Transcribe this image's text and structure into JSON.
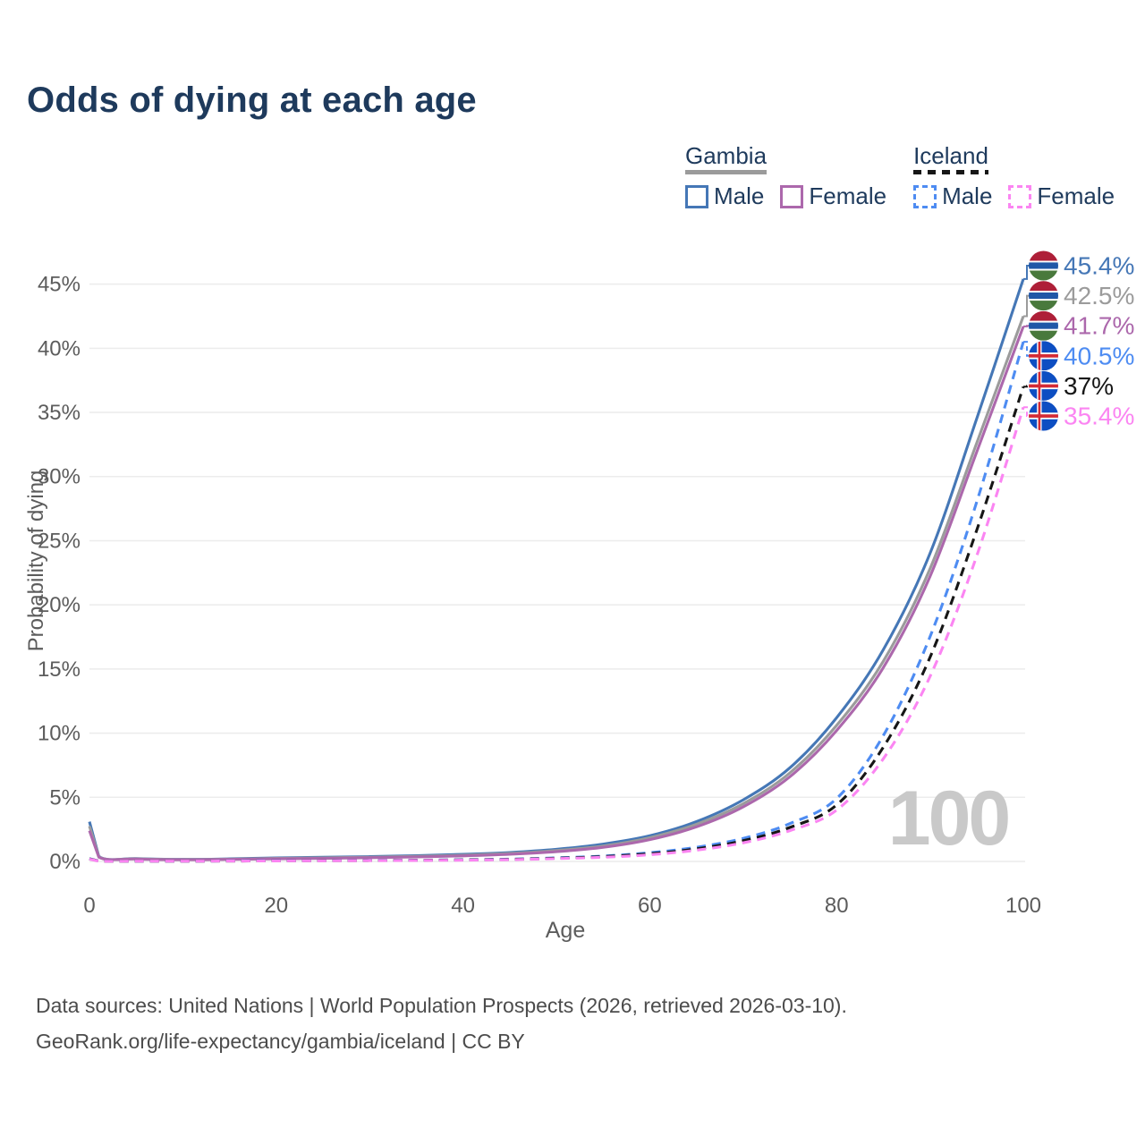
{
  "age_indicator": "100",
  "legend": {
    "groups": [
      {
        "name": "Gambia",
        "line_style": "solid",
        "line_color": "#9b9b9b",
        "items": [
          {
            "label": "Male",
            "color": "#4577b6",
            "dashed": false
          },
          {
            "label": "Female",
            "color": "#ac68ac",
            "dashed": false
          }
        ]
      },
      {
        "name": "Iceland",
        "line_style": "dashed",
        "line_color": "#161616",
        "items": [
          {
            "label": "Male",
            "color": "#4e8cf2",
            "dashed": true
          },
          {
            "label": "Female",
            "color": "#fb85f2",
            "dashed": true
          }
        ]
      }
    ]
  },
  "chart_data": {
    "type": "line",
    "title": "Odds of dying at each age",
    "xlabel": "Age",
    "ylabel": "Probability of dying",
    "xlim": [
      0,
      100
    ],
    "ylim": [
      0,
      46.5
    ],
    "x_ticks": [
      0,
      20,
      40,
      60,
      80,
      100
    ],
    "y_ticks": [
      0,
      5,
      10,
      15,
      20,
      25,
      30,
      35,
      40,
      45
    ],
    "y_tick_suffix": "%",
    "grid": true,
    "legend_position": "top-right",
    "x": [
      0,
      1,
      5,
      10,
      15,
      20,
      25,
      30,
      35,
      40,
      45,
      50,
      55,
      60,
      65,
      70,
      75,
      80,
      85,
      90,
      95,
      100
    ],
    "series": [
      {
        "name": "Gambia Male",
        "color": "#4577b6",
        "dash": "solid",
        "flag": "gambia",
        "end_label": "45.4%",
        "values": [
          3.1,
          0.4,
          0.22,
          0.16,
          0.2,
          0.28,
          0.33,
          0.38,
          0.45,
          0.55,
          0.7,
          0.95,
          1.35,
          2.0,
          3.1,
          4.8,
          7.3,
          11.2,
          16.5,
          24.0,
          34.5,
          45.4
        ]
      },
      {
        "name": "Gambia",
        "color": "#9b9b9b",
        "dash": "solid",
        "flag": "gambia",
        "end_label": "42.5%",
        "values": [
          2.75,
          0.37,
          0.2,
          0.15,
          0.18,
          0.24,
          0.28,
          0.33,
          0.4,
          0.48,
          0.62,
          0.85,
          1.2,
          1.85,
          2.9,
          4.5,
          6.9,
          10.6,
          15.6,
          22.8,
          32.6,
          42.5
        ]
      },
      {
        "name": "Gambia Female",
        "color": "#ac68ac",
        "dash": "solid",
        "flag": "gambia",
        "end_label": "41.7%",
        "values": [
          2.4,
          0.34,
          0.19,
          0.13,
          0.16,
          0.2,
          0.24,
          0.29,
          0.35,
          0.43,
          0.56,
          0.76,
          1.1,
          1.7,
          2.7,
          4.25,
          6.6,
          10.2,
          15.1,
          22.2,
          31.9,
          41.7
        ]
      },
      {
        "name": "Iceland Male",
        "color": "#4e8cf2",
        "dash": "dashed",
        "flag": "iceland",
        "end_label": "40.5%",
        "values": [
          0.22,
          0.03,
          0.02,
          0.02,
          0.04,
          0.06,
          0.07,
          0.08,
          0.1,
          0.13,
          0.18,
          0.28,
          0.42,
          0.68,
          1.1,
          1.8,
          2.95,
          4.9,
          9.8,
          17.5,
          28.0,
          40.5
        ]
      },
      {
        "name": "Iceland",
        "color": "#161616",
        "dash": "dashed",
        "flag": "iceland",
        "end_label": "37%",
        "values": [
          0.2,
          0.03,
          0.02,
          0.02,
          0.03,
          0.05,
          0.06,
          0.07,
          0.09,
          0.12,
          0.16,
          0.25,
          0.38,
          0.6,
          0.98,
          1.62,
          2.65,
          4.4,
          8.9,
          15.9,
          25.8,
          37.0
        ]
      },
      {
        "name": "Iceland Female",
        "color": "#fb85f2",
        "dash": "dashed",
        "flag": "iceland",
        "end_label": "35.4%",
        "values": [
          0.18,
          0.02,
          0.02,
          0.02,
          0.03,
          0.04,
          0.05,
          0.06,
          0.08,
          0.1,
          0.14,
          0.22,
          0.33,
          0.52,
          0.88,
          1.45,
          2.4,
          4.0,
          8.0,
          14.4,
          23.8,
          35.4
        ]
      }
    ]
  },
  "flags": {
    "gambia": {
      "red": "#ae1f38",
      "blue": "#2057a7",
      "green": "#49793c",
      "white": "#ffffff"
    },
    "iceland": {
      "blue": "#0d4ec2",
      "white": "#ffffff",
      "red": "#d42b35"
    }
  },
  "footer": {
    "line1": "Data sources: United Nations | World Population Prospects (2026, retrieved 2026-03-10).",
    "line2": "GeoRank.org/life-expectancy/gambia/iceland | CC BY"
  }
}
